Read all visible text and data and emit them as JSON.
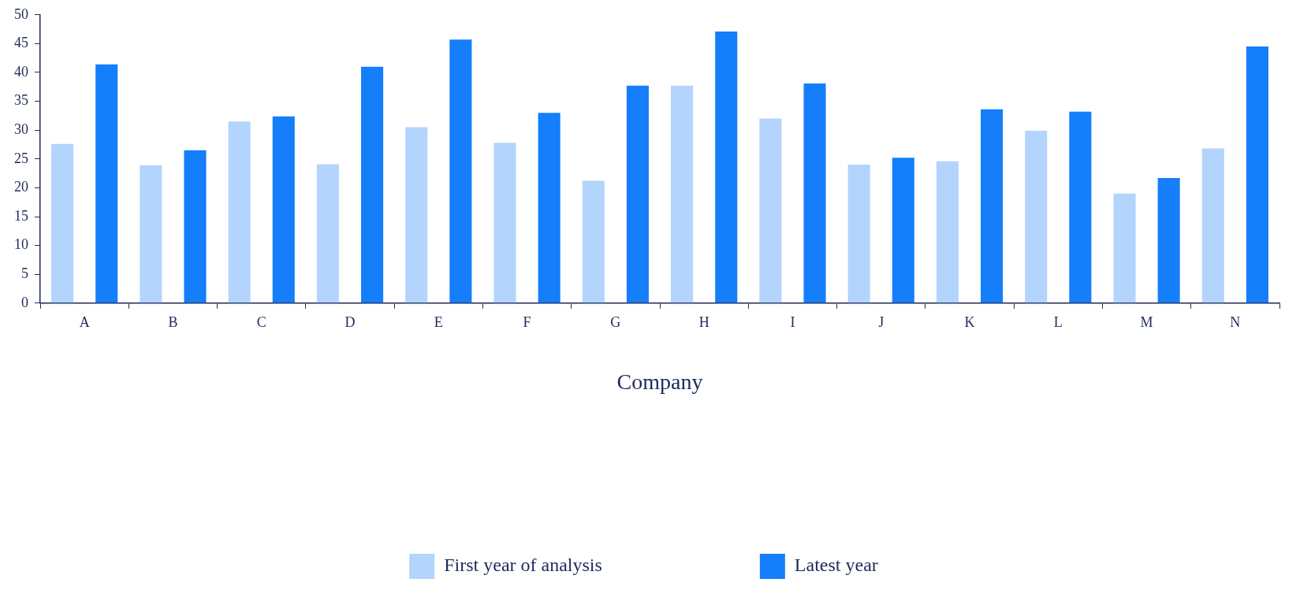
{
  "chart_data": {
    "type": "bar",
    "xlabel": "Company",
    "categories": [
      "A",
      "B",
      "C",
      "D",
      "E",
      "F",
      "G",
      "H",
      "I",
      "J",
      "K",
      "L",
      "M",
      "N"
    ],
    "series": [
      {
        "name": "First year of analysis",
        "color": "#b3d4fc",
        "values": [
          27.6,
          23.9,
          31.5,
          24.1,
          30.5,
          27.8,
          21.2,
          37.7,
          32.0,
          24.0,
          24.6,
          29.9,
          19.0,
          26.8
        ]
      },
      {
        "name": "Latest year",
        "color": "#147efb",
        "values": [
          41.4,
          26.5,
          32.4,
          41.0,
          45.7,
          33.0,
          37.7,
          47.1,
          38.1,
          25.2,
          33.6,
          33.2,
          21.7,
          44.5
        ]
      }
    ],
    "ylim": [
      0,
      50
    ],
    "yticks": [
      0,
      5,
      10,
      15,
      20,
      25,
      30,
      35,
      40,
      45,
      50
    ],
    "legend": "bottom"
  }
}
